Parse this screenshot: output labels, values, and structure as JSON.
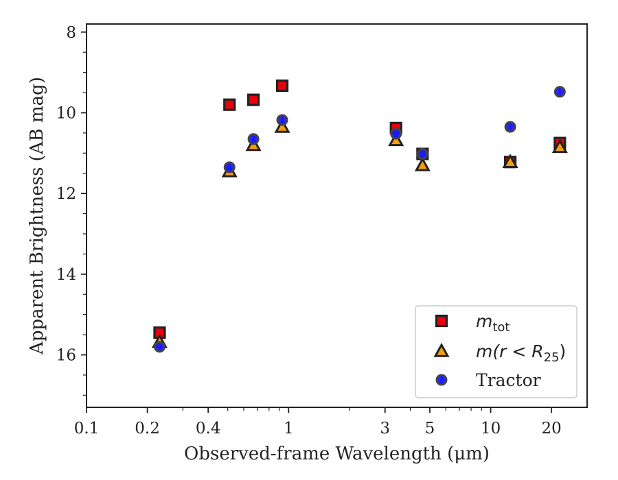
{
  "chart_data": {
    "type": "scatter",
    "xlabel": "Observed-frame Wavelength (μm)",
    "ylabel": "Apparent Brightness (AB mag)",
    "xscale": "log",
    "xlim": [
      0.1,
      30
    ],
    "ylim": [
      17.3,
      7.8
    ],
    "y_inverted": true,
    "x_ticks": [
      0.1,
      0.2,
      0.4,
      1,
      3,
      5,
      10,
      20
    ],
    "x_tick_labels": [
      "0.1",
      "0.2",
      "0.4",
      "1",
      "3",
      "5",
      "10",
      "20"
    ],
    "y_ticks": [
      8,
      10,
      12,
      14,
      16
    ],
    "y_tick_labels": [
      "8",
      "10",
      "12",
      "14",
      "16"
    ],
    "grid": false,
    "legend_position": "lower-right",
    "series": [
      {
        "name": "m_tot",
        "legend_parts": [
          "m",
          "tot"
        ],
        "marker": "square",
        "color": "#e8000b",
        "error_color": "#e8000b",
        "x": [
          0.23,
          0.51,
          0.67,
          0.93,
          3.4,
          4.6,
          12.5,
          22
        ],
        "y": [
          15.45,
          9.8,
          9.68,
          9.33,
          10.38,
          11.02,
          11.22,
          10.75
        ]
      },
      {
        "name": "m(r < R25)",
        "legend_parts": [
          "m(r < R",
          "25",
          ")"
        ],
        "marker": "triangle",
        "color": "#f59e0b",
        "error_color": "#f0a500",
        "x": [
          0.23,
          0.51,
          0.67,
          0.93,
          3.4,
          4.6,
          12.5,
          22
        ],
        "y": [
          15.68,
          11.45,
          10.8,
          10.35,
          10.68,
          11.3,
          11.22,
          10.85
        ]
      },
      {
        "name": "Tractor",
        "marker": "circle",
        "color": "#1a1aff",
        "error_color": "#1a1aff",
        "x": [
          0.23,
          0.51,
          0.67,
          0.93,
          3.4,
          4.6,
          12.5,
          22
        ],
        "y": [
          15.8,
          11.35,
          10.65,
          10.18,
          10.52,
          11.02,
          10.35,
          9.48
        ]
      }
    ]
  }
}
